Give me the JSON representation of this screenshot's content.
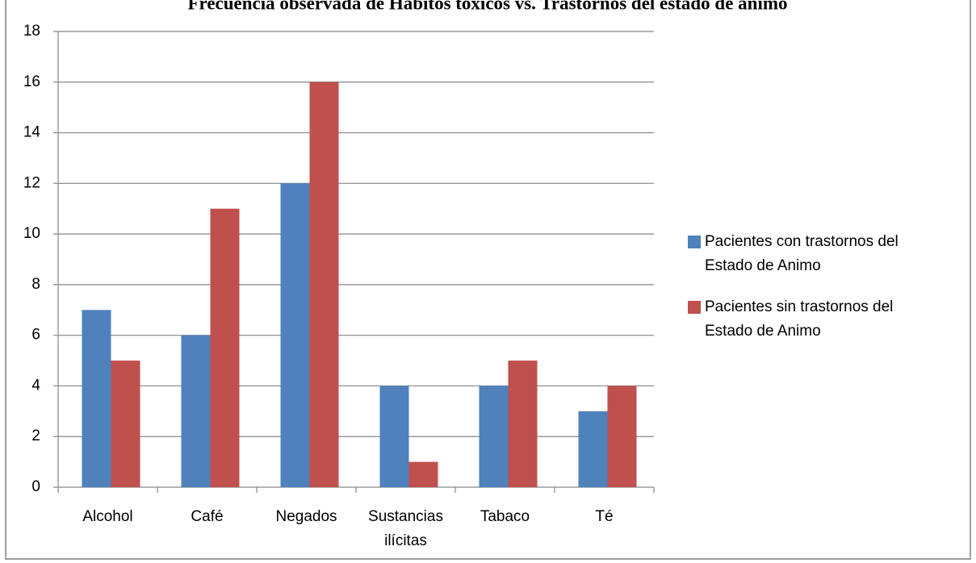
{
  "chart_data": {
    "type": "bar",
    "title": "Frecuencia observada de Hábitos tóxicos vs. Trastornos del estado de ánimo",
    "categories": [
      "Alcohol",
      "Café",
      "Negados",
      "Sustancias ilícitas",
      "Tabaco",
      "Té"
    ],
    "series": [
      {
        "name": "Pacientes con trastornos del Estado de Animo",
        "color": "#4f81bd",
        "values": [
          7,
          6,
          12,
          4,
          4,
          3
        ]
      },
      {
        "name": "Pacientes sin trastornos del Estado de Animo",
        "color": "#c0504d",
        "values": [
          5,
          11,
          16,
          1,
          5,
          4
        ]
      }
    ],
    "ylim": [
      0,
      18
    ],
    "yticks": [
      0,
      2,
      4,
      6,
      8,
      10,
      12,
      14,
      16,
      18
    ],
    "grid": true,
    "legend": "right"
  }
}
